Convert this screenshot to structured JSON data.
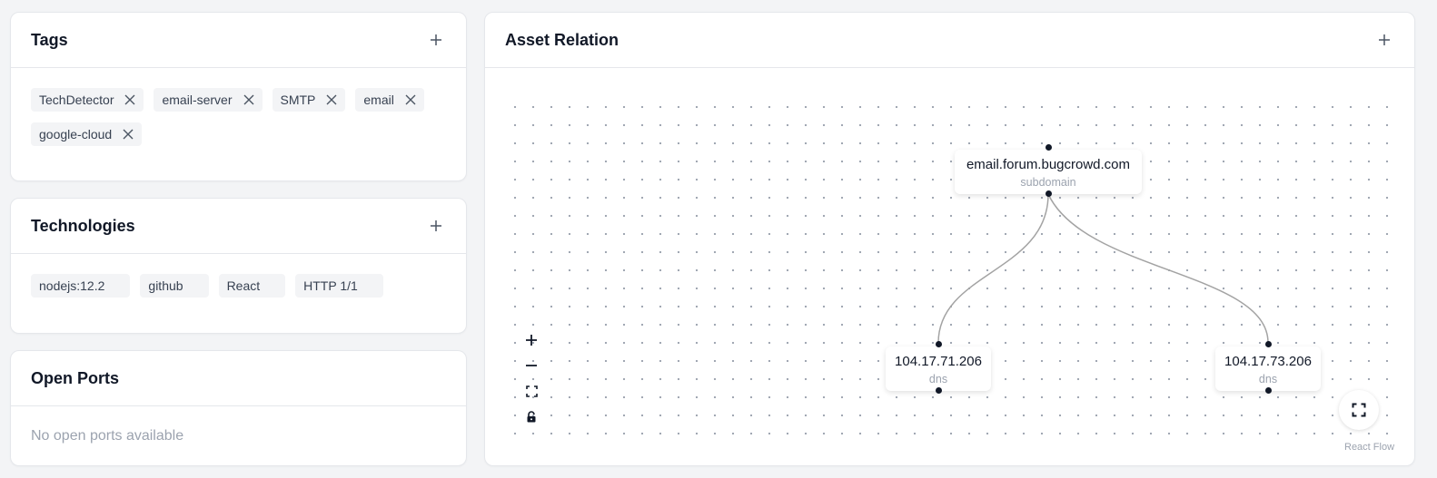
{
  "tags": {
    "title": "Tags",
    "items": [
      "TechDetector",
      "email-server",
      "SMTP",
      "email",
      "google-cloud"
    ]
  },
  "technologies": {
    "title": "Technologies",
    "items": [
      "nodejs:12.2",
      "github",
      "React",
      "HTTP 1/1"
    ]
  },
  "open_ports": {
    "title": "Open Ports",
    "empty_text": "No open ports available"
  },
  "asset_relation": {
    "title": "Asset Relation",
    "nodes": [
      {
        "label": "email.forum.bugcrowd.com",
        "type": "subdomain"
      },
      {
        "label": "104.17.71.206",
        "type": "dns"
      },
      {
        "label": "104.17.73.206",
        "type": "dns"
      }
    ],
    "attribution": "React Flow",
    "controls": [
      "zoom-in-icon",
      "zoom-out-icon",
      "fit-view-icon",
      "lock-icon"
    ]
  },
  "colors": {
    "background": "#f3f4f6",
    "card": "#ffffff",
    "chip": "#f3f4f6",
    "edge": "#9ca3af",
    "handle": "#111827"
  }
}
